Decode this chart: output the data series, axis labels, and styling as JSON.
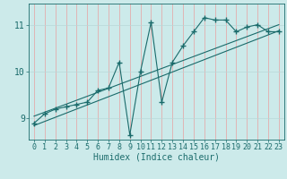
{
  "xlabel": "Humidex (Indice chaleur)",
  "bg_color": "#cceaea",
  "line_color": "#1a6b6b",
  "grid_color_v": "#e8a0a0",
  "grid_color_h": "#b8d8d8",
  "xlim": [
    -0.5,
    23.5
  ],
  "ylim": [
    8.55,
    11.45
  ],
  "yticks": [
    9,
    10,
    11
  ],
  "xticks": [
    0,
    1,
    2,
    3,
    4,
    5,
    6,
    7,
    8,
    9,
    10,
    11,
    12,
    13,
    14,
    15,
    16,
    17,
    18,
    19,
    20,
    21,
    22,
    23
  ],
  "scatter_x": [
    0,
    1,
    2,
    3,
    4,
    5,
    6,
    7,
    8,
    9,
    10,
    11,
    12,
    13,
    14,
    15,
    16,
    17,
    18,
    19,
    20,
    21,
    22,
    23
  ],
  "scatter_y": [
    8.9,
    9.1,
    9.2,
    9.25,
    9.3,
    9.35,
    9.6,
    9.65,
    10.2,
    8.65,
    10.0,
    11.05,
    9.35,
    10.2,
    10.55,
    10.85,
    11.15,
    11.1,
    11.1,
    10.85,
    10.95,
    11.0,
    10.85,
    10.85
  ],
  "line1_x": [
    0,
    23
  ],
  "line1_y": [
    8.85,
    10.87
  ],
  "line2_x": [
    0,
    23
  ],
  "line2_y": [
    9.05,
    11.0
  ],
  "marker_size": 4,
  "linewidth": 0.8,
  "xlabel_fontsize": 7,
  "tick_fontsize": 6
}
